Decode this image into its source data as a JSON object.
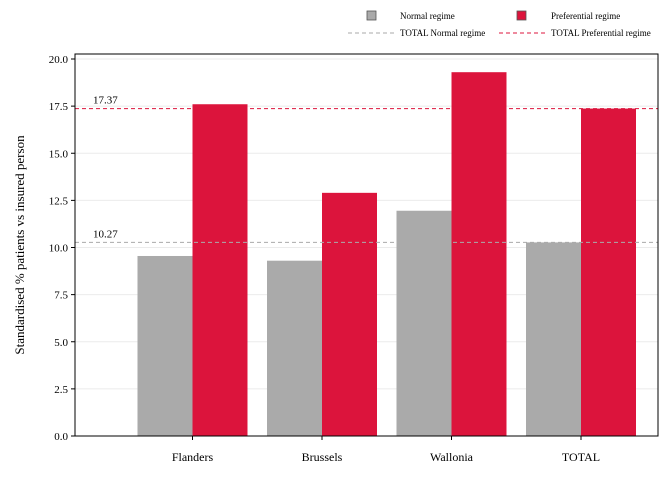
{
  "chart_data": {
    "type": "bar",
    "categories": [
      "Flanders",
      "Brussels",
      "Wallonia",
      "TOTAL"
    ],
    "series": [
      {
        "name": "Normal regime",
        "values": [
          9.55,
          9.3,
          11.95,
          10.27
        ],
        "color": "#aaaaaa"
      },
      {
        "name": "Preferential regime",
        "values": [
          17.6,
          12.9,
          19.3,
          17.37
        ],
        "color": "#dc143c"
      }
    ],
    "reference_lines": [
      {
        "name": "TOTAL Normal regime",
        "value": 10.27,
        "label": "10.27",
        "color": "#aaaaaa",
        "style": "dashed"
      },
      {
        "name": "TOTAL Preferential regime",
        "value": 17.37,
        "label": "17.37",
        "color": "#dc143c",
        "style": "dashed"
      }
    ],
    "ylabel": "Standardised % patients vs insured person",
    "xlabel": "",
    "ylim": [
      0,
      20
    ],
    "yticks": [
      "0.0",
      "2.5",
      "5.0",
      "7.5",
      "10.0",
      "12.5",
      "15.0",
      "17.5",
      "20.0"
    ],
    "grid": true,
    "legend_position": "top"
  }
}
